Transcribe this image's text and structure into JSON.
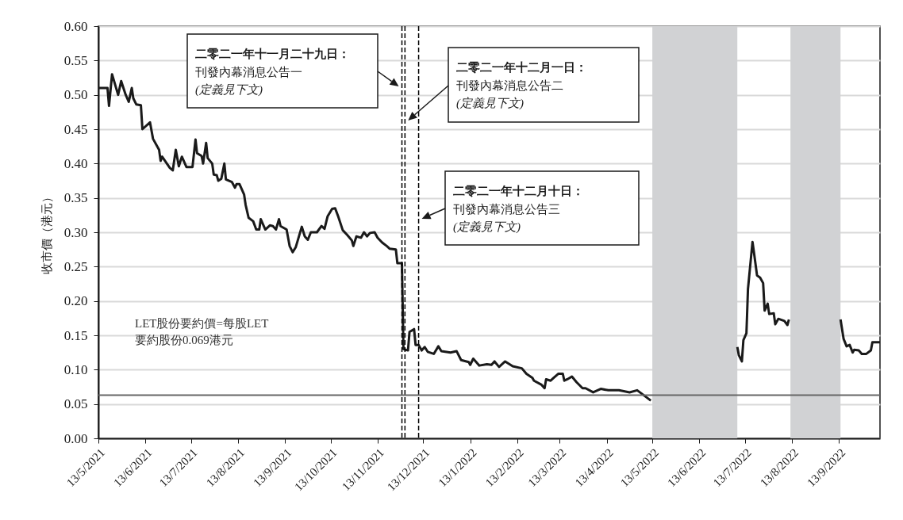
{
  "chart_data": {
    "type": "line",
    "ylabel": "收市價（港元）",
    "grid": "y",
    "xlim": [
      "2021-05-13",
      "2022-10-10"
    ],
    "xticks": [
      {
        "value": "2021-05-13",
        "label": "13/5/2021"
      },
      {
        "value": "2021-06-13",
        "label": "13/6/2021"
      },
      {
        "value": "2021-07-13",
        "label": "13/7/2021"
      },
      {
        "value": "2021-08-13",
        "label": "13/8/2021"
      },
      {
        "value": "2021-09-13",
        "label": "13/9/2021"
      },
      {
        "value": "2021-10-13",
        "label": "13/10/2021"
      },
      {
        "value": "2021-11-13",
        "label": "13/11/2021"
      },
      {
        "value": "2021-12-13",
        "label": "13/12/2021"
      },
      {
        "value": "2022-01-13",
        "label": "13/1/2022"
      },
      {
        "value": "2022-02-13",
        "label": "13/2/2022"
      },
      {
        "value": "2022-03-13",
        "label": "13/3/2022"
      },
      {
        "value": "2022-04-13",
        "label": "13/4/2022"
      },
      {
        "value": "2022-05-13",
        "label": "13/5/2022"
      },
      {
        "value": "2022-06-13",
        "label": "13/6/2022"
      },
      {
        "value": "2022-07-13",
        "label": "13/7/2022"
      },
      {
        "value": "2022-08-13",
        "label": "13/8/2022"
      },
      {
        "value": "2022-09-13",
        "label": "13/9/2022"
      }
    ],
    "ylim": [
      0,
      0.6
    ],
    "yticks": [
      {
        "value": 0,
        "label": "0.00"
      },
      {
        "value": 0.05,
        "label": "0.05"
      },
      {
        "value": 0.1,
        "label": "0.10"
      },
      {
        "value": 0.15,
        "label": "0.15"
      },
      {
        "value": 0.2,
        "label": "0.20"
      },
      {
        "value": 0.25,
        "label": "0.25"
      },
      {
        "value": 0.3,
        "label": "0.30"
      },
      {
        "value": 0.35,
        "label": "0.35"
      },
      {
        "value": 0.4,
        "label": "0.40"
      },
      {
        "value": 0.45,
        "label": "0.45"
      },
      {
        "value": 0.5,
        "label": "0.50"
      },
      {
        "value": 0.55,
        "label": "0.55"
      },
      {
        "value": 0.6,
        "label": "0.60"
      }
    ],
    "series": [
      {
        "color": "#1a1a1a",
        "x": [
          "2021-05-13",
          "2021-05-19",
          "2021-05-20",
          "2021-05-22",
          "2021-05-26",
          "2021-05-28",
          "2021-05-31",
          "2021-06-02",
          "2021-06-04",
          "2021-06-05",
          "2021-06-07",
          "2021-06-10",
          "2021-06-11",
          "2021-06-16",
          "2021-06-18",
          "2021-06-22",
          "2021-06-23",
          "2021-06-24",
          "2021-06-29",
          "2021-07-01",
          "2021-07-03",
          "2021-07-05",
          "2021-07-07",
          "2021-07-10",
          "2021-07-14",
          "2021-07-16",
          "2021-07-17",
          "2021-07-20",
          "2021-07-21",
          "2021-07-23",
          "2021-07-24",
          "2021-07-27",
          "2021-07-28",
          "2021-07-30",
          "2021-07-31",
          "2021-08-02",
          "2021-08-04",
          "2021-08-05",
          "2021-08-09",
          "2021-08-11",
          "2021-08-12",
          "2021-08-14",
          "2021-08-17",
          "2021-08-18",
          "2021-08-20",
          "2021-08-23",
          "2021-08-25",
          "2021-08-27",
          "2021-08-28",
          "2021-08-31",
          "2021-09-03",
          "2021-09-05",
          "2021-09-07",
          "2021-09-09",
          "2021-09-10",
          "2021-09-14",
          "2021-09-16",
          "2021-09-18",
          "2021-09-20",
          "2021-09-24",
          "2021-09-26",
          "2021-09-28",
          "2021-09-30",
          "2021-10-04",
          "2021-10-07",
          "2021-10-09",
          "2021-10-11",
          "2021-10-14",
          "2021-10-16",
          "2021-10-18",
          "2021-10-21",
          "2021-10-24",
          "2021-10-27",
          "2021-10-28",
          "2021-10-30",
          "2021-11-02",
          "2021-11-04",
          "2021-11-06",
          "2021-11-08",
          "2021-11-11",
          "2021-11-13",
          "2021-11-16",
          "2021-11-19",
          "2021-11-21",
          "2021-11-25",
          "2021-11-26",
          "2021-11-29",
          "2021-11-30",
          "2021-12-03",
          "2021-12-04",
          "2021-12-07",
          "2021-12-08",
          "2021-12-10",
          "2021-12-12",
          "2021-12-14",
          "2021-12-16",
          "2021-12-20",
          "2021-12-23",
          "2021-12-25",
          "2021-12-31",
          "2022-01-04",
          "2022-01-07",
          "2022-01-12",
          "2022-01-13",
          "2022-01-15",
          "2022-01-19",
          "2022-01-24",
          "2022-01-27",
          "2022-01-29",
          "2022-02-01",
          "2022-02-05",
          "2022-02-10",
          "2022-02-16",
          "2022-02-19",
          "2022-02-23",
          "2022-02-24",
          "2022-03-01",
          "2022-03-03",
          "2022-03-04",
          "2022-03-07",
          "2022-03-09",
          "2022-03-12",
          "2022-03-15",
          "2022-03-16",
          "2022-03-18",
          "2022-03-21",
          "2022-03-24",
          "2022-03-28",
          "2022-03-30",
          "2022-04-04",
          "2022-04-09",
          "2022-04-14",
          "2022-04-21",
          "2022-04-28",
          "2022-05-03",
          "2022-05-06",
          "2022-05-12",
          "2022-06-10",
          "2022-07-08",
          "2022-07-09",
          "2022-07-11",
          "2022-07-12",
          "2022-07-14",
          "2022-07-15",
          "2022-07-18",
          "2022-07-19",
          "2022-07-21",
          "2022-07-23",
          "2022-07-25",
          "2022-07-26",
          "2022-07-28",
          "2022-07-29",
          "2022-08-01",
          "2022-08-02",
          "2022-08-04",
          "2022-08-08",
          "2022-08-10",
          "2022-08-11",
          "2022-08-25",
          "2022-09-14",
          "2022-09-16",
          "2022-09-18",
          "2022-09-20",
          "2022-09-22",
          "2022-09-23",
          "2022-09-26",
          "2022-09-28",
          "2022-10-01",
          "2022-10-04",
          "2022-10-05",
          "2022-10-10"
        ],
        "values": [
          0.51,
          0.51,
          0.484,
          0.53,
          0.5,
          0.52,
          0.5,
          0.49,
          0.51,
          0.495,
          0.486,
          0.485,
          0.45,
          0.46,
          0.436,
          0.42,
          0.404,
          0.41,
          0.394,
          0.39,
          0.42,
          0.396,
          0.41,
          0.395,
          0.395,
          0.435,
          0.415,
          0.411,
          0.4,
          0.43,
          0.408,
          0.4,
          0.384,
          0.383,
          0.375,
          0.378,
          0.4,
          0.377,
          0.373,
          0.365,
          0.37,
          0.37,
          0.355,
          0.34,
          0.321,
          0.316,
          0.304,
          0.304,
          0.319,
          0.304,
          0.31,
          0.309,
          0.304,
          0.319,
          0.309,
          0.304,
          0.28,
          0.271,
          0.278,
          0.308,
          0.294,
          0.289,
          0.3,
          0.3,
          0.309,
          0.305,
          0.323,
          0.334,
          0.335,
          0.323,
          0.303,
          0.296,
          0.288,
          0.28,
          0.294,
          0.292,
          0.3,
          0.294,
          0.299,
          0.3,
          0.292,
          0.285,
          0.28,
          0.276,
          0.275,
          0.255,
          0.255,
          0.13,
          0.128,
          0.155,
          0.159,
          0.136,
          0.136,
          0.128,
          0.133,
          0.126,
          0.123,
          0.134,
          0.127,
          0.125,
          0.127,
          0.114,
          0.111,
          0.107,
          0.116,
          0.106,
          0.108,
          0.107,
          0.112,
          0.104,
          0.112,
          0.105,
          0.102,
          0.094,
          0.088,
          0.084,
          0.078,
          0.073,
          0.086,
          0.084,
          0.088,
          0.094,
          0.094,
          0.084,
          0.086,
          0.09,
          0.082,
          0.073,
          0.073,
          0.067,
          0.072,
          0.07,
          0.07,
          0.067,
          0.07,
          0.065,
          0.055,
          null,
          0.133,
          0.121,
          0.112,
          0.143,
          0.153,
          0.217,
          0.286,
          0.27,
          0.237,
          0.234,
          0.226,
          0.186,
          0.196,
          0.181,
          0.182,
          0.166,
          0.174,
          0.171,
          0.165,
          0.173,
          null,
          0.173,
          0.145,
          0.134,
          0.136,
          0.125,
          0.129,
          0.128,
          0.123,
          0.123,
          0.128,
          0.14,
          0.14
        ]
      }
    ],
    "annotations": [
      "二零二一年十一月二十九日：",
      "刊發內幕消息公告一",
      "(定義見下文)",
      "二零二一年十二月一日：",
      "刊發內幕消息公告二",
      "(定義見下文)",
      "二零二一年十二月十日：",
      "刊發內幕消息公告三",
      "(定義見下文)",
      "LET股份要約價=每股LET",
      "要約股份0.069港元"
    ],
    "ref_lines": [
      {
        "axis": "x",
        "value": "2021-11-29",
        "line_style": "dashed",
        "color": "#000000"
      },
      {
        "axis": "x",
        "value": "2021-12-01",
        "line_style": "dashed",
        "color": "#000000"
      },
      {
        "axis": "x",
        "value": "2021-12-10",
        "line_style": "dashed",
        "color": "#000000"
      },
      {
        "axis": "y",
        "value": 0.063,
        "line_style": "solid",
        "color": "#666666"
      }
    ],
    "bands": [
      {
        "axis": "x",
        "from": "2022-05-13",
        "to": "2022-07-08",
        "color": "#d1d2d4"
      },
      {
        "axis": "x",
        "from": "2022-08-12",
        "to": "2022-09-14",
        "color": "#d1d2d4"
      }
    ]
  }
}
